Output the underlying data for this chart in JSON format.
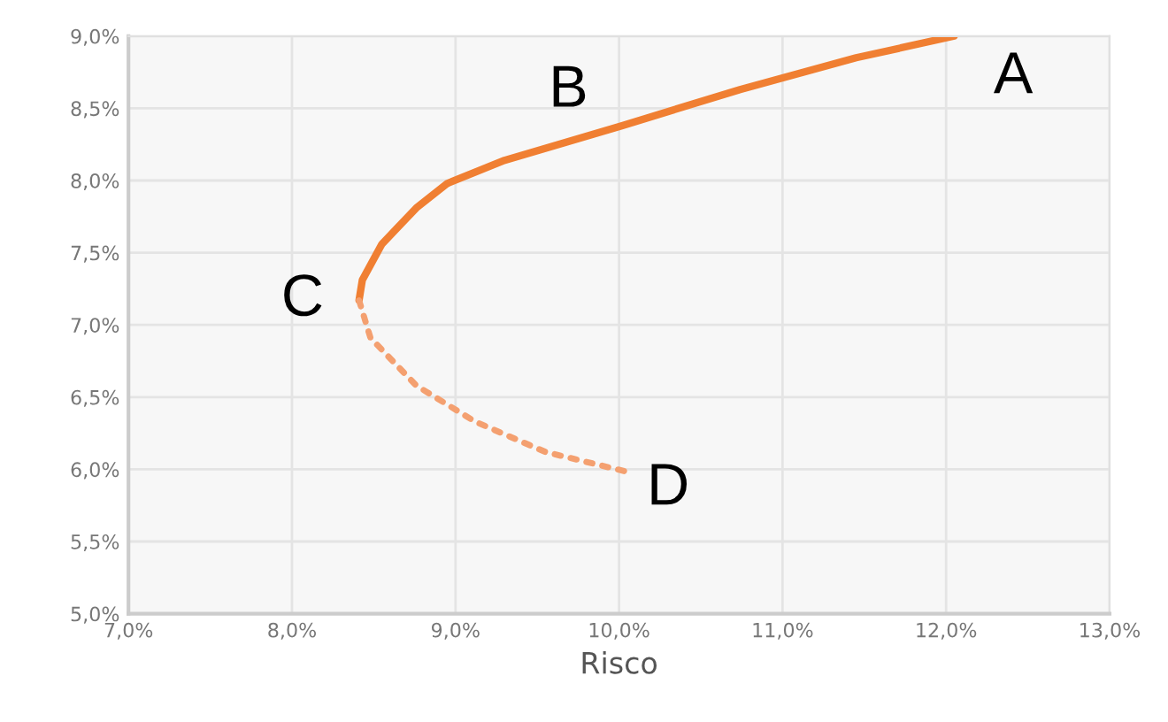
{
  "chart_data": {
    "type": "line",
    "xlabel": "Risco",
    "series": [
      {
        "color": "#f07f32",
        "line_style": "solid",
        "x": [
          12.05,
          11.45,
          10.74,
          10.02,
          9.3,
          8.95,
          8.76,
          8.55,
          8.43,
          8.41
        ],
        "values": [
          9.0,
          8.85,
          8.63,
          8.38,
          8.14,
          7.98,
          7.81,
          7.56,
          7.31,
          7.17
        ]
      },
      {
        "color": "#f4a070",
        "line_style": "dotted",
        "x": [
          8.41,
          8.48,
          8.76,
          9.12,
          9.55,
          10.06
        ],
        "values": [
          7.17,
          6.91,
          6.58,
          6.33,
          6.12,
          5.98
        ]
      }
    ],
    "annotations": [
      {
        "text": "A",
        "x": 12.05,
        "y": 9.0
      },
      {
        "text": "B",
        "x": 9.3,
        "y": 8.14
      },
      {
        "text": "C",
        "x": 8.41,
        "y": 7.17
      },
      {
        "text": "D",
        "x": 10.06,
        "y": 5.98
      }
    ],
    "xlim": [
      7,
      13
    ],
    "ylim": [
      5,
      9
    ],
    "xticks": [
      {
        "value": 7,
        "label": "7,0%"
      },
      {
        "value": 8,
        "label": "8,0%"
      },
      {
        "value": 9,
        "label": "9,0%"
      },
      {
        "value": 10,
        "label": "10,0%"
      },
      {
        "value": 11,
        "label": "11,0%"
      },
      {
        "value": 12,
        "label": "12,0%"
      },
      {
        "value": 13,
        "label": "13,0%"
      }
    ],
    "yticks": [
      {
        "value": 5,
        "label": "5,0%"
      },
      {
        "value": 5.5,
        "label": "5,5%"
      },
      {
        "value": 6,
        "label": "6,0%"
      },
      {
        "value": 6.5,
        "label": "6,5%"
      },
      {
        "value": 7,
        "label": "7,0%"
      },
      {
        "value": 7.5,
        "label": "7,5%"
      },
      {
        "value": 8,
        "label": "8,0%"
      },
      {
        "value": 8.5,
        "label": "8,5%"
      },
      {
        "value": 9,
        "label": "9,0%"
      }
    ],
    "grid": true,
    "marker": "none"
  }
}
